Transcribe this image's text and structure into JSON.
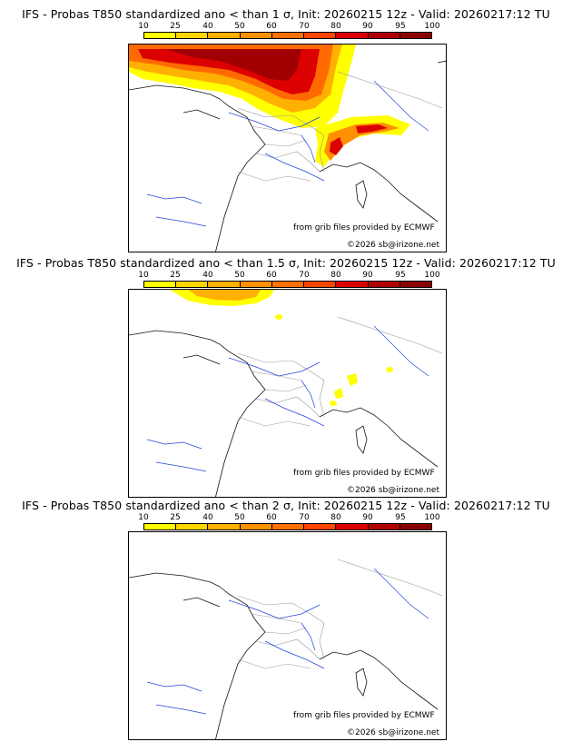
{
  "panels": [
    {
      "title": "IFS - Probas T850  standardized ano < than 1 σ, Init: 20260215 12z - Valid: 20260217:12 TU",
      "source": "from grib files provided by ECMWF",
      "copyright": "©2026 sb@irizone.net"
    },
    {
      "title": "IFS - Probas T850  standardized ano < than 1.5 σ, Init: 20260215 12z - Valid: 20260217:12 TU",
      "source": "from grib files provided by ECMWF",
      "copyright": "©2026 sb@irizone.net"
    },
    {
      "title": "IFS - Probas T850  standardized ano < than 2 σ, Init: 20260215 12z - Valid: 20260217:12 TU",
      "source": "from grib files provided by ECMWF",
      "copyright": "©2026 sb@irizone.net"
    }
  ],
  "colorbar": {
    "ticks": [
      "10",
      "25",
      "40",
      "50",
      "60",
      "70",
      "80",
      "90",
      "95",
      "100"
    ],
    "colors": [
      "#ffff00",
      "#ffd700",
      "#ffb000",
      "#ff9000",
      "#ff7000",
      "#ff4500",
      "#dd0000",
      "#b00000",
      "#8b0000",
      "#5a0000"
    ]
  }
}
